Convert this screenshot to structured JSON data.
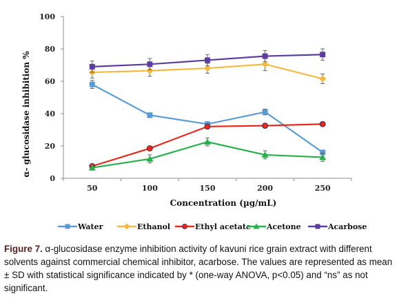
{
  "caption": {
    "label": "Figure 7.",
    "text": " α-glucosidase enzyme inhibition activity of kavuni rice grain extract with different solvents against commercial chemical inhibitor, acarbose. The values are represented as mean ± SD with statistical significance indicated by * (one-way ANOVA, p<0.05) and “ns” as not significant."
  },
  "chart_data": {
    "type": "line",
    "xlabel": "Concentration (µg/mL)",
    "ylabel": "α- glucosidase inhibition %",
    "categories": [
      "50",
      "100",
      "150",
      "200",
      "250"
    ],
    "x": [
      50,
      100,
      150,
      200,
      250
    ],
    "ylim": [
      0,
      100
    ],
    "yticks": [
      0,
      20,
      40,
      60,
      80,
      100
    ],
    "grid": false,
    "legend_position": "bottom",
    "series": [
      {
        "name": "Water",
        "color": "#5b9bd5",
        "marker": "square",
        "values": [
          58,
          39,
          33.5,
          41,
          16
        ],
        "errors": [
          2.5,
          1.5,
          1.0,
          1.8,
          1.0
        ]
      },
      {
        "name": "Ethanol",
        "color": "#f4b942",
        "marker": "diamond",
        "values": [
          65.5,
          66.5,
          68,
          70.5,
          61.5
        ],
        "errors": [
          3.5,
          3.5,
          3.0,
          4.0,
          3.0
        ]
      },
      {
        "name": "Ethyl acetate",
        "color": "#e8291c",
        "marker": "circle",
        "values": [
          7.5,
          18.5,
          32,
          32.5,
          33.5
        ],
        "errors": [
          1.0,
          0.8,
          0.8,
          0.8,
          1.2
        ]
      },
      {
        "name": "Acetone",
        "color": "#27b04a",
        "marker": "triangle",
        "values": [
          6.5,
          12,
          22.5,
          14.5,
          13
        ],
        "errors": [
          1.2,
          2.5,
          2.5,
          2.5,
          2.5
        ]
      },
      {
        "name": "Acarbose",
        "color": "#5b3d9e",
        "marker": "square",
        "values": [
          69,
          70.5,
          73,
          75.5,
          76.5
        ],
        "errors": [
          3.5,
          3.5,
          3.5,
          3.5,
          3.5
        ]
      }
    ]
  }
}
